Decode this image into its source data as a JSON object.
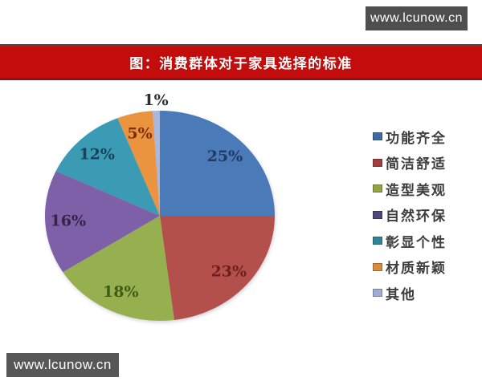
{
  "watermark_top": {
    "text": "www.lcunow.cn"
  },
  "watermark_bottom": {
    "text": "www.lcunow.cn"
  },
  "banner": {
    "title": "图：消费群体对于家具选择的标准",
    "bg_color": "#c20d0c",
    "text_color": "#ffffff"
  },
  "chart_data": {
    "type": "pie",
    "title": "图：消费群体对于家具选择的标准",
    "unit": "%",
    "start_angle_deg": 0,
    "direction": "clockwise",
    "legend_position": "right",
    "categories": [
      "功能齐全",
      "简洁舒适",
      "造型美观",
      "自然环保",
      "彰显个性",
      "材质新颖",
      "其他"
    ],
    "values": [
      25,
      23,
      18,
      16,
      12,
      5,
      1
    ],
    "slices": [
      {
        "label": "功能齐全",
        "value": 25,
        "color": "#4a7ab8",
        "label_color": "#1f3b63",
        "swatch_color": "#3e6ba3",
        "label_outside": false
      },
      {
        "label": "简洁舒适",
        "value": 23,
        "color": "#b4504b",
        "label_color": "#6e1f1c",
        "swatch_color": "#a23f3c",
        "label_outside": false
      },
      {
        "label": "造型美观",
        "value": 18,
        "color": "#97b04f",
        "label_color": "#3f5a17",
        "swatch_color": "#90a542",
        "label_outside": false
      },
      {
        "label": "自然环保",
        "value": 16,
        "color": "#7e60a8",
        "label_color": "#34244a",
        "swatch_color": "#51487a",
        "label_outside": false
      },
      {
        "label": "彰显个性",
        "value": 12,
        "color": "#3b9ab4",
        "label_color": "#16425a",
        "swatch_color": "#2f8498",
        "label_outside": false
      },
      {
        "label": "材质新颖",
        "value": 5,
        "color": "#eb9440",
        "label_color": "#7c2d0e",
        "swatch_color": "#d98b3d",
        "label_outside": false
      },
      {
        "label": "其他",
        "value": 1,
        "color": "#a9b7dc",
        "label_color": "#2e2e2e",
        "swatch_color": "#9fadd6",
        "label_outside": true
      }
    ]
  }
}
